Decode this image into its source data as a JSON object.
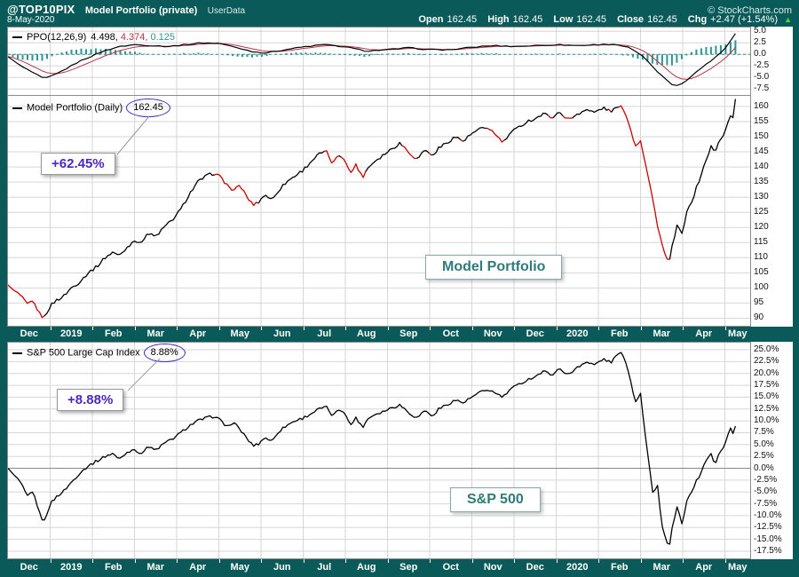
{
  "colors": {
    "background": "#0a5a5a",
    "panel_bg": "#ffffff",
    "panel_border": "#8c8c8c",
    "grid": "#d6d6d6",
    "price_up": "#000000",
    "price_down": "#cc0000",
    "snp_line": "#000000",
    "ppo_line": "#000000",
    "ppo_signal": "#bb3344",
    "ppo_hist": "#2e9393",
    "zero_line": "#888888",
    "annotation_purple": "#4a28c0",
    "label_teal": "#2e7b7b",
    "circle_blue": "#3b28c8"
  },
  "header": {
    "symbol": "@TOP10PIX",
    "title": "Model Portfolio (private)",
    "source": "UserData",
    "copyright": "© StockCharts.com",
    "date": "8-May-2020",
    "quote": {
      "open_label": "Open",
      "open_value": "162.45",
      "high_label": "High",
      "high_value": "162.45",
      "low_label": "Low",
      "low_value": "162.45",
      "close_label": "Close",
      "close_value": "162.45",
      "chg_label": "Chg",
      "chg_value": "+2.47 (+1.54%)",
      "direction_arrow": "▲"
    }
  },
  "legends": {
    "ppo": {
      "name": "PPO(12,26,9)",
      "v1": "4.498,",
      "v2": "4.374,",
      "v3": "0.125"
    },
    "price": {
      "name": "Model Portfolio (Daily)",
      "value": "162.45"
    },
    "snp": {
      "name": "S&P 500 Large Cap Index",
      "value": "8.88%"
    }
  },
  "annotations": {
    "price_gain": "+62.45%",
    "snp_gain": "+8.88%",
    "price_label": "Model Portfolio",
    "snp_label": "S&P 500"
  },
  "xaxis": {
    "labels": [
      "Dec",
      "2019",
      "Feb",
      "Mar",
      "Apr",
      "May",
      "Jun",
      "Jul",
      "Aug",
      "Sep",
      "Oct",
      "Nov",
      "Dec",
      "2020",
      "Feb",
      "Mar",
      "Apr",
      "May"
    ]
  },
  "chart_data": [
    {
      "type": "line",
      "panel": "ppo",
      "title": "PPO(12,26,9)",
      "x_unit": "months from 2018-12-01",
      "x_range": [
        0,
        17.25
      ],
      "ylim": [
        -8.8,
        5.8
      ],
      "yticks": [
        5.0,
        2.5,
        0.0,
        -2.5,
        -5.0,
        -7.5
      ],
      "last_values": {
        "ppo": 4.498,
        "signal": 4.374,
        "histogram": 0.125
      },
      "series": [
        {
          "name": "PPO",
          "color": "#000000",
          "points": [
            [
              0,
              -0.5
            ],
            [
              0.3,
              -2.5
            ],
            [
              0.6,
              -4
            ],
            [
              0.85,
              -5.3
            ],
            [
              1.1,
              -4.5
            ],
            [
              1.4,
              -3
            ],
            [
              1.7,
              -1.5
            ],
            [
              2.0,
              -0.3
            ],
            [
              2.3,
              0.8
            ],
            [
              2.6,
              1.6
            ],
            [
              3.0,
              2.1
            ],
            [
              3.4,
              1.9
            ],
            [
              3.8,
              1.7
            ],
            [
              4.2,
              2.1
            ],
            [
              4.6,
              2.5
            ],
            [
              5.0,
              2.4
            ],
            [
              5.4,
              1.5
            ],
            [
              5.8,
              0.6
            ],
            [
              6.1,
              0.3
            ],
            [
              6.5,
              0.9
            ],
            [
              7.0,
              1.6
            ],
            [
              7.5,
              2.1
            ],
            [
              8.0,
              1.6
            ],
            [
              8.5,
              0.7
            ],
            [
              9.0,
              1.0
            ],
            [
              9.5,
              1.4
            ],
            [
              10.0,
              1.0
            ],
            [
              10.5,
              1.0
            ],
            [
              11.0,
              1.5
            ],
            [
              11.5,
              1.9
            ],
            [
              12.0,
              1.7
            ],
            [
              12.5,
              1.9
            ],
            [
              13.0,
              2.1
            ],
            [
              13.5,
              1.9
            ],
            [
              14.0,
              2.1
            ],
            [
              14.4,
              2.2
            ],
            [
              14.7,
              1.5
            ],
            [
              15.0,
              0.0
            ],
            [
              15.3,
              -2.8
            ],
            [
              15.6,
              -5.5
            ],
            [
              15.8,
              -6.9
            ],
            [
              16.0,
              -6.2
            ],
            [
              16.2,
              -4.8
            ],
            [
              16.5,
              -2.5
            ],
            [
              16.8,
              -0.5
            ],
            [
              17.0,
              1.2
            ],
            [
              17.1,
              2.5
            ],
            [
              17.25,
              4.498
            ]
          ]
        },
        {
          "name": "Signal(9)",
          "color": "#bb3344",
          "derived": "EMA of PPO"
        },
        {
          "name": "Histogram",
          "color": "#2e9393",
          "derived": "PPO - Signal"
        }
      ]
    },
    {
      "type": "line",
      "panel": "price",
      "title": "Model Portfolio (Daily)",
      "last_value": 162.45,
      "gain_label": "+62.45%",
      "x_unit": "months from 2018-12-01",
      "x_range": [
        0,
        17.25
      ],
      "ylim": [
        87.5,
        163.5
      ],
      "yticks": [
        160,
        155,
        150,
        145,
        140,
        135,
        130,
        125,
        120,
        115,
        110,
        105,
        100,
        95,
        90
      ],
      "points": [
        [
          0,
          101
        ],
        [
          0.15,
          99
        ],
        [
          0.3,
          97.5
        ],
        [
          0.45,
          94.5
        ],
        [
          0.6,
          95.5
        ],
        [
          0.75,
          91.5
        ],
        [
          0.85,
          90
        ],
        [
          1.0,
          94
        ],
        [
          1.15,
          96
        ],
        [
          1.3,
          97
        ],
        [
          1.5,
          100
        ],
        [
          1.7,
          102
        ],
        [
          1.9,
          105
        ],
        [
          2.1,
          107
        ],
        [
          2.3,
          110
        ],
        [
          2.5,
          112
        ],
        [
          2.62,
          110.5
        ],
        [
          2.8,
          113
        ],
        [
          3.0,
          116
        ],
        [
          3.12,
          114.5
        ],
        [
          3.3,
          118
        ],
        [
          3.5,
          117
        ],
        [
          3.7,
          120
        ],
        [
          3.9,
          122.5
        ],
        [
          4.1,
          126
        ],
        [
          4.3,
          131
        ],
        [
          4.5,
          135
        ],
        [
          4.7,
          137
        ],
        [
          4.9,
          138
        ],
        [
          5.05,
          136.5
        ],
        [
          5.2,
          134
        ],
        [
          5.35,
          132
        ],
        [
          5.5,
          134
        ],
        [
          5.65,
          130.5
        ],
        [
          5.8,
          127.5
        ],
        [
          5.95,
          128.5
        ],
        [
          6.1,
          131
        ],
        [
          6.25,
          129
        ],
        [
          6.4,
          132
        ],
        [
          6.6,
          135
        ],
        [
          6.8,
          137
        ],
        [
          7.0,
          139
        ],
        [
          7.2,
          142
        ],
        [
          7.4,
          144.5
        ],
        [
          7.55,
          145
        ],
        [
          7.7,
          141
        ],
        [
          7.85,
          144
        ],
        [
          8.0,
          142.5
        ],
        [
          8.12,
          137.5
        ],
        [
          8.25,
          141
        ],
        [
          8.4,
          136.5
        ],
        [
          8.55,
          140
        ],
        [
          8.7,
          142
        ],
        [
          8.9,
          144
        ],
        [
          9.1,
          146
        ],
        [
          9.3,
          148
        ],
        [
          9.5,
          145
        ],
        [
          9.7,
          142.5
        ],
        [
          9.9,
          146
        ],
        [
          10.05,
          143.5
        ],
        [
          10.2,
          146
        ],
        [
          10.4,
          148
        ],
        [
          10.6,
          150
        ],
        [
          10.8,
          148.5
        ],
        [
          11.0,
          151
        ],
        [
          11.2,
          152.5
        ],
        [
          11.4,
          153
        ],
        [
          11.6,
          150
        ],
        [
          11.75,
          148
        ],
        [
          11.9,
          151
        ],
        [
          12.1,
          153
        ],
        [
          12.3,
          155
        ],
        [
          12.5,
          156
        ],
        [
          12.7,
          157.5
        ],
        [
          12.9,
          156.5
        ],
        [
          13.1,
          158
        ],
        [
          13.3,
          155.5
        ],
        [
          13.5,
          157.5
        ],
        [
          13.7,
          159
        ],
        [
          13.9,
          158
        ],
        [
          14.1,
          159.5
        ],
        [
          14.3,
          158.5
        ],
        [
          14.5,
          160
        ],
        [
          14.62,
          159
        ],
        [
          14.75,
          153
        ],
        [
          14.88,
          147
        ],
        [
          15.0,
          149
        ],
        [
          15.12,
          141
        ],
        [
          15.25,
          132
        ],
        [
          15.4,
          121
        ],
        [
          15.55,
          112
        ],
        [
          15.68,
          108
        ],
        [
          15.78,
          116
        ],
        [
          15.88,
          121
        ],
        [
          15.98,
          117.5
        ],
        [
          16.1,
          125
        ],
        [
          16.25,
          130
        ],
        [
          16.4,
          136
        ],
        [
          16.5,
          140
        ],
        [
          16.6,
          144
        ],
        [
          16.68,
          147
        ],
        [
          16.76,
          144.5
        ],
        [
          16.88,
          149
        ],
        [
          17.0,
          151.5
        ],
        [
          17.06,
          154
        ],
        [
          17.12,
          157.5
        ],
        [
          17.18,
          155
        ],
        [
          17.25,
          162.45
        ]
      ]
    },
    {
      "type": "line",
      "panel": "snp",
      "title": "S&P 500 Large Cap Index",
      "last_value_pct": 8.88,
      "gain_label": "+8.88%",
      "x_unit": "months from 2018-12-01",
      "x_range": [
        0,
        17.25
      ],
      "ylim": [
        -19,
        26.5
      ],
      "yticks": [
        25.0,
        22.5,
        20.0,
        17.5,
        15.0,
        12.5,
        10.0,
        7.5,
        5.0,
        2.5,
        0.0,
        -2.5,
        -5.0,
        -7.5,
        -10.0,
        -12.5,
        -15.0,
        -17.5
      ],
      "points": [
        [
          0,
          0
        ],
        [
          0.15,
          -1.5
        ],
        [
          0.3,
          -3
        ],
        [
          0.45,
          -6
        ],
        [
          0.6,
          -5
        ],
        [
          0.75,
          -9.5
        ],
        [
          0.85,
          -11.5
        ],
        [
          1.0,
          -7.5
        ],
        [
          1.15,
          -6
        ],
        [
          1.3,
          -5
        ],
        [
          1.5,
          -3
        ],
        [
          1.7,
          -1
        ],
        [
          1.9,
          0.5
        ],
        [
          2.1,
          1.5
        ],
        [
          2.3,
          2.5
        ],
        [
          2.5,
          3.2
        ],
        [
          2.62,
          1.8
        ],
        [
          2.8,
          3.2
        ],
        [
          3.0,
          4.2
        ],
        [
          3.12,
          2.8
        ],
        [
          3.3,
          4.6
        ],
        [
          3.5,
          3.8
        ],
        [
          3.7,
          5.2
        ],
        [
          3.9,
          6.2
        ],
        [
          4.1,
          7.5
        ],
        [
          4.3,
          9
        ],
        [
          4.5,
          10
        ],
        [
          4.7,
          10.6
        ],
        [
          4.9,
          11
        ],
        [
          5.05,
          10
        ],
        [
          5.2,
          8.8
        ],
        [
          5.35,
          9.6
        ],
        [
          5.5,
          8.2
        ],
        [
          5.65,
          6.5
        ],
        [
          5.8,
          4.8
        ],
        [
          5.95,
          5.2
        ],
        [
          6.1,
          6.6
        ],
        [
          6.25,
          5.6
        ],
        [
          6.4,
          7.6
        ],
        [
          6.6,
          9
        ],
        [
          6.8,
          10
        ],
        [
          7.0,
          10.6
        ],
        [
          7.2,
          11.6
        ],
        [
          7.4,
          12.6
        ],
        [
          7.55,
          12.9
        ],
        [
          7.7,
          11
        ],
        [
          7.85,
          12.4
        ],
        [
          8.0,
          11.8
        ],
        [
          8.12,
          8.8
        ],
        [
          8.25,
          10.8
        ],
        [
          8.4,
          8.6
        ],
        [
          8.55,
          10.6
        ],
        [
          8.7,
          11.4
        ],
        [
          8.9,
          12
        ],
        [
          9.1,
          12.8
        ],
        [
          9.3,
          13.4
        ],
        [
          9.5,
          11.8
        ],
        [
          9.7,
          10.6
        ],
        [
          9.9,
          12.4
        ],
        [
          10.05,
          10.8
        ],
        [
          10.2,
          12.4
        ],
        [
          10.4,
          13.4
        ],
        [
          10.6,
          14.4
        ],
        [
          10.8,
          13.8
        ],
        [
          11.0,
          15
        ],
        [
          11.2,
          16
        ],
        [
          11.4,
          16.6
        ],
        [
          11.6,
          15.6
        ],
        [
          11.75,
          15
        ],
        [
          11.9,
          16.6
        ],
        [
          12.1,
          17.6
        ],
        [
          12.3,
          18.6
        ],
        [
          12.5,
          19.4
        ],
        [
          12.7,
          20.4
        ],
        [
          12.9,
          19.8
        ],
        [
          13.1,
          21
        ],
        [
          13.3,
          19.6
        ],
        [
          13.5,
          21.4
        ],
        [
          13.7,
          22.4
        ],
        [
          13.9,
          21.8
        ],
        [
          14.1,
          23
        ],
        [
          14.3,
          22.4
        ],
        [
          14.5,
          24.4
        ],
        [
          14.62,
          23.6
        ],
        [
          14.75,
          19
        ],
        [
          14.88,
          14
        ],
        [
          15.0,
          16
        ],
        [
          15.1,
          8
        ],
        [
          15.2,
          1
        ],
        [
          15.3,
          -6
        ],
        [
          15.4,
          -3
        ],
        [
          15.5,
          -12
        ],
        [
          15.6,
          -15
        ],
        [
          15.68,
          -17
        ],
        [
          15.78,
          -11
        ],
        [
          15.88,
          -8
        ],
        [
          15.98,
          -12
        ],
        [
          16.1,
          -7
        ],
        [
          16.25,
          -4
        ],
        [
          16.4,
          -1.5
        ],
        [
          16.5,
          0.5
        ],
        [
          16.6,
          2.5
        ],
        [
          16.68,
          3
        ],
        [
          16.76,
          0.5
        ],
        [
          16.88,
          3.5
        ],
        [
          17.0,
          5
        ],
        [
          17.06,
          6.5
        ],
        [
          17.12,
          9
        ],
        [
          17.18,
          7
        ],
        [
          17.25,
          8.88
        ]
      ]
    }
  ]
}
